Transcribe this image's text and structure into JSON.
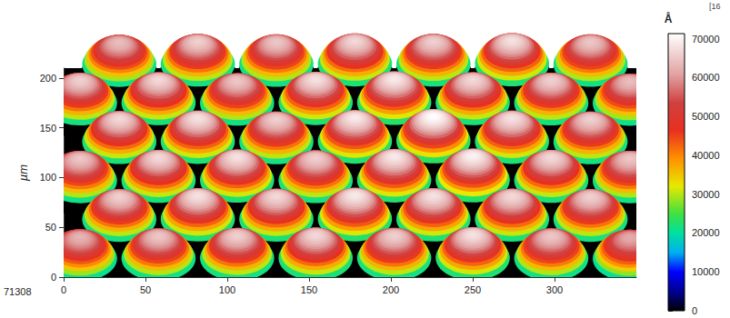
{
  "chart_data": {
    "type": "surface",
    "y_label": "µm",
    "xlim": [
      0,
      350
    ],
    "xticks": [
      0,
      50,
      100,
      150,
      200,
      250,
      300
    ],
    "ylim": [
      0,
      210
    ],
    "yticks": [
      0,
      50,
      100,
      150,
      200
    ],
    "zlim": [
      0,
      71308
    ],
    "zticks": [
      71308
    ],
    "grid": false,
    "annotations": [
      "[16"
    ],
    "colorbar": {
      "label": "Å",
      "range": [
        0,
        71308
      ],
      "ticks": [
        0,
        10000,
        20000,
        30000,
        40000,
        50000,
        60000,
        70000
      ]
    },
    "lens_diameter": 48,
    "lenses": {
      "x": [
        34,
        82,
        130,
        178,
        226,
        274,
        322,
        10,
        58,
        106,
        154,
        202,
        250,
        298,
        346,
        34,
        82,
        130,
        178,
        226,
        274,
        322,
        10,
        58,
        106,
        154,
        202,
        250,
        298,
        346,
        34,
        82,
        130,
        178,
        226,
        274,
        322,
        10,
        58,
        106,
        154,
        202,
        250,
        298,
        346
      ],
      "y": [
        203,
        203,
        203,
        203,
        203,
        203,
        203,
        164,
        164,
        164,
        164,
        164,
        164,
        164,
        164,
        125,
        125,
        125,
        125,
        125,
        125,
        125,
        86,
        86,
        86,
        86,
        86,
        86,
        86,
        86,
        47,
        47,
        47,
        47,
        47,
        47,
        47,
        8,
        8,
        8,
        8,
        8,
        8,
        8,
        8
      ],
      "peak": [
        64000,
        66000,
        65000,
        67000,
        66000,
        68000,
        65000,
        66000,
        67000,
        65000,
        68000,
        69000,
        67000,
        66000,
        64000,
        67000,
        68000,
        66000,
        69000,
        71308,
        68000,
        66000,
        65000,
        67000,
        68000,
        66000,
        69000,
        70000,
        67000,
        65000,
        66000,
        68000,
        67000,
        69000,
        68000,
        67000,
        66000,
        63000,
        65000,
        66000,
        67000,
        66000,
        68000,
        65000,
        62000
      ]
    }
  }
}
